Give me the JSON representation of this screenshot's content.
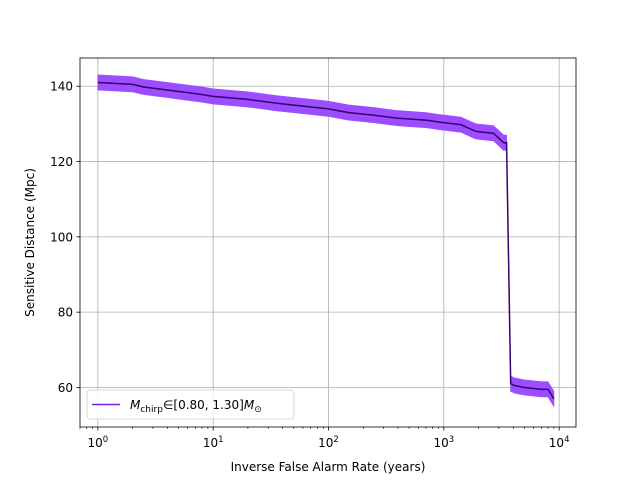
{
  "chart_data": {
    "type": "line",
    "title": "",
    "xlabel": "Inverse False Alarm Rate (years)",
    "ylabel": "Sensitive Distance (Mpc)",
    "xscale": "log",
    "xlim": [
      0.7,
      14000
    ],
    "ylim": [
      49.5,
      147.5
    ],
    "grid": true,
    "legend_position": "lower-left",
    "x_ticks": [
      1,
      10,
      100,
      1000,
      10000
    ],
    "x_tick_labels": [
      {
        "base": "10",
        "exp": "0"
      },
      {
        "base": "10",
        "exp": "1"
      },
      {
        "base": "10",
        "exp": "2"
      },
      {
        "base": "10",
        "exp": "3"
      },
      {
        "base": "10",
        "exp": "4"
      }
    ],
    "y_ticks": [
      60,
      80,
      100,
      120,
      140
    ],
    "y_tick_labels": [
      "60",
      "80",
      "100",
      "120",
      "140"
    ],
    "series": [
      {
        "name": "M_chirp ∈ [0.80, 1.30] M_☉",
        "legend": {
          "M": "M",
          "chirp": "chirp",
          "in": "∈",
          "range": "[0.80, 1.30]",
          "sun": "⊙"
        },
        "line_color": "#3a0070",
        "band_color": "#9b4dff",
        "legend_color": "#7a1fe0",
        "x": [
          1.0,
          2.0,
          2.5,
          4.0,
          6.0,
          8.0,
          10.0,
          20.0,
          35.0,
          50.0,
          100.0,
          150.0,
          250.0,
          400.0,
          700.0,
          900.0,
          1400.0,
          1900.0,
          2700.0,
          3300.0,
          3500.0,
          3800.0,
          4100.0,
          5000.0,
          7000.0,
          8000.0,
          9000.0
        ],
        "y": [
          141,
          140.5,
          139.8,
          139,
          138.3,
          137.8,
          137.3,
          136.5,
          135.5,
          135,
          134,
          133,
          132.3,
          131.5,
          131,
          130.5,
          129.8,
          128,
          127.5,
          125,
          125,
          61,
          60.5,
          60,
          59.5,
          59.5,
          57
        ],
        "upper": [
          143,
          142.5,
          141.8,
          141,
          140.3,
          139.8,
          139.3,
          138.5,
          137.5,
          137,
          136,
          135,
          134.3,
          133.5,
          133,
          132.5,
          131.8,
          130,
          129.5,
          127,
          127,
          63,
          62.5,
          62,
          61.5,
          61.5,
          59
        ],
        "lower": [
          139,
          138.5,
          137.8,
          137,
          136.3,
          135.8,
          135.3,
          134.5,
          133.5,
          133,
          132,
          131,
          130.3,
          129.5,
          129,
          128.5,
          127.8,
          126,
          125.5,
          123,
          123,
          59,
          58.5,
          58,
          57.5,
          57.5,
          55
        ]
      }
    ]
  }
}
